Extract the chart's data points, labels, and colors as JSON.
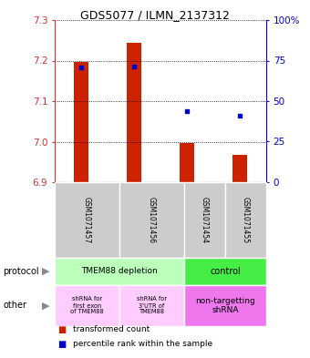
{
  "title": "GDS5077 / ILMN_2137312",
  "samples": [
    "GSM1071457",
    "GSM1071456",
    "GSM1071454",
    "GSM1071455"
  ],
  "red_values": [
    7.197,
    7.243,
    6.997,
    6.967
  ],
  "red_base": 6.9,
  "blue_values": [
    0.71,
    0.715,
    0.44,
    0.41
  ],
  "ylim_left": [
    6.9,
    7.3
  ],
  "ylim_right": [
    0,
    100
  ],
  "left_ticks": [
    6.9,
    7.0,
    7.1,
    7.2,
    7.3
  ],
  "right_ticks": [
    0,
    25,
    50,
    75,
    100
  ],
  "right_tick_labels": [
    "0",
    "25",
    "50",
    "75",
    "100%"
  ],
  "protocol_labels": [
    "TMEM88 depletion",
    "control"
  ],
  "protocol_color_left": "#bbffbb",
  "protocol_color_right": "#44ee44",
  "other_labels_left1": "shRNA for\nfirst exon\nof TMEM88",
  "other_labels_left2": "shRNA for\n3'UTR of\nTMEM88",
  "other_labels_right": "non-targetting\nshRNA",
  "other_color_left": "#ffccff",
  "other_color_right": "#ee77ee",
  "bar_color": "#cc2200",
  "dot_color": "#0000cc",
  "tick_color_left": "#cc3333",
  "tick_color_right": "#0000cc",
  "sample_bg": "#cccccc",
  "legend_red_text": "transformed count",
  "legend_blue_text": "percentile rank within the sample"
}
